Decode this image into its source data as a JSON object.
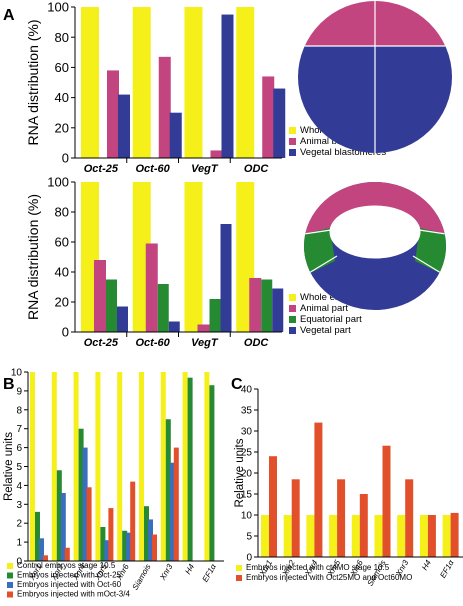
{
  "colors": {
    "yellow": "#f5f01a",
    "magenta": "#c2457f",
    "blue": "#323c96",
    "green": "#258a31",
    "orange": "#e2502b",
    "white": "#ffffff"
  },
  "panel_letters": {
    "a": "A",
    "b": "B",
    "c": "C"
  },
  "chart_data": [
    {
      "id": "A1",
      "type": "bar",
      "title": "",
      "ylabel": "RNA distribution (%)",
      "ylim": [
        0,
        100
      ],
      "yticks": [
        0,
        20,
        40,
        60,
        80,
        100
      ],
      "categories": [
        "Oct-25",
        "Oct-60",
        "VegT",
        "ODC"
      ],
      "series": [
        {
          "name": "Whole embryo stage 4",
          "color": "#f5f01a",
          "values": [
            100,
            100,
            100,
            100
          ]
        },
        {
          "name": "Animal blastomeres",
          "color": "#c2457f",
          "values": [
            58,
            67,
            5,
            54
          ]
        },
        {
          "name": "Vegetal blastomeres",
          "color": "#323c96",
          "values": [
            42,
            30,
            95,
            46
          ]
        }
      ],
      "legend_position": "bottom-right",
      "grid": false
    },
    {
      "id": "A2",
      "type": "bar",
      "title": "",
      "ylabel": "RNA distribution (%)",
      "ylim": [
        0,
        100
      ],
      "yticks": [
        0,
        20,
        40,
        60,
        80,
        100
      ],
      "categories": [
        "Oct-25",
        "Oct-60",
        "VegT",
        "ODC"
      ],
      "series": [
        {
          "name": "Whole embryo stage 8.5",
          "color": "#f5f01a",
          "values": [
            100,
            100,
            100,
            100
          ]
        },
        {
          "name": "Animal part",
          "color": "#c2457f",
          "values": [
            48,
            59,
            5,
            36
          ]
        },
        {
          "name": "Equatorial part",
          "color": "#258a31",
          "values": [
            35,
            32,
            22,
            35
          ]
        },
        {
          "name": "Vegetal part",
          "color": "#323c96",
          "values": [
            17,
            7,
            72,
            29
          ]
        }
      ],
      "legend_position": "bottom-right",
      "grid": false
    },
    {
      "id": "B",
      "type": "bar",
      "title": "",
      "ylabel": "Relative units",
      "ylim": [
        0,
        10
      ],
      "yticks": [
        0,
        1,
        2,
        3,
        4,
        5,
        6,
        7,
        8,
        9,
        10
      ],
      "categories": [
        "Xnr1",
        "Xnr2",
        "Xnr4",
        "Xnr5",
        "Xnr6",
        "Siamois",
        "Xnr3",
        "H4",
        "EF1α"
      ],
      "series": [
        {
          "name": "Control embryos stage 10.5",
          "color": "#f5f01a",
          "values": [
            10,
            10,
            10,
            10,
            10,
            10,
            10,
            10,
            10
          ]
        },
        {
          "name": "Embryos injected with Oct-25",
          "color": "#258a31",
          "values": [
            2.6,
            4.8,
            7.0,
            1.8,
            1.6,
            2.9,
            7.5,
            9.7,
            9.3
          ]
        },
        {
          "name": "Embryos injected with Oct-60",
          "color": "#3a6fbf",
          "values": [
            1.2,
            3.6,
            6.0,
            1.1,
            1.5,
            2.2,
            5.2,
            0,
            0
          ]
        },
        {
          "name": "Embryos injected with mOct-3/4",
          "color": "#e2502b",
          "values": [
            0.3,
            0.7,
            3.9,
            2.8,
            4.2,
            1.4,
            6.0,
            0,
            0
          ]
        }
      ],
      "legend_position": "bottom",
      "grid": false
    },
    {
      "id": "C",
      "type": "bar",
      "title": "",
      "ylabel": "Relative units",
      "ylim": [
        0,
        40
      ],
      "yticks": [
        0,
        5,
        10,
        15,
        20,
        25,
        30,
        35,
        40
      ],
      "categories": [
        "Xnr1",
        "Xnr2",
        "Xnr4",
        "Xnr5",
        "Xnr6",
        "Siamois",
        "Xnr3",
        "H4",
        "EF1α"
      ],
      "series": [
        {
          "name": "Embryos injected with ctrlMO stage 10.5",
          "color": "#f5f01a",
          "values": [
            10,
            10,
            10,
            10,
            10,
            10,
            10,
            10,
            10
          ]
        },
        {
          "name": "Embryos injected with Oct25MO and Oct60MO",
          "color": "#e2502b",
          "values": [
            24,
            18.5,
            32,
            18.5,
            15,
            26.5,
            18.5,
            10,
            10.5
          ]
        }
      ],
      "legend_position": "bottom",
      "grid": false
    }
  ]
}
